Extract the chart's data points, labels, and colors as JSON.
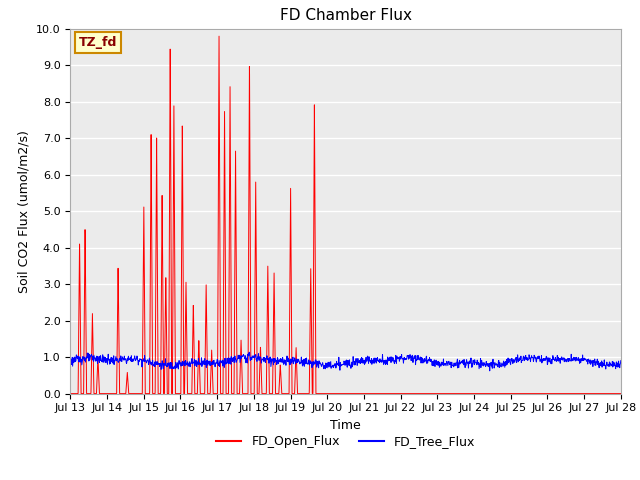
{
  "title": "FD Chamber Flux",
  "xlabel": "Time",
  "ylabel": "Soil CO2 Flux (umol/m2/s)",
  "ylim": [
    0.0,
    10.0
  ],
  "xlim_days": [
    13,
    28
  ],
  "yticks": [
    0.0,
    1.0,
    2.0,
    3.0,
    4.0,
    5.0,
    6.0,
    7.0,
    8.0,
    9.0,
    10.0
  ],
  "xtick_labels": [
    "Jul 13",
    "Jul 14",
    "Jul 15",
    "Jul 16",
    "Jul 17",
    "Jul 18",
    "Jul 19",
    "Jul 20",
    "Jul 21",
    "Jul 22",
    "Jul 23",
    "Jul 24",
    "Jul 25",
    "Jul 26",
    "Jul 27",
    "Jul 28"
  ],
  "annotation_text": "TZ_fd",
  "annotation_bg": "#ffffcc",
  "annotation_border": "#cc8800",
  "annotation_text_color": "#880000",
  "open_flux_color": "red",
  "tree_flux_color": "blue",
  "bg_color": "#ebebeb",
  "legend_labels": [
    "FD_Open_Flux",
    "FD_Tree_Flux"
  ],
  "title_fontsize": 11,
  "axis_label_fontsize": 9,
  "tick_fontsize": 8,
  "spike_times": [
    13.25,
    13.4,
    13.6,
    13.75,
    14.3,
    14.55,
    15.0,
    15.2,
    15.35,
    15.5,
    15.6,
    15.72,
    15.82,
    16.05,
    16.15,
    16.35,
    16.5,
    16.7,
    16.85,
    17.05,
    17.2,
    17.35,
    17.5,
    17.65,
    17.88,
    18.05,
    18.18,
    18.38,
    18.55,
    18.72,
    19.0,
    19.15,
    19.55,
    19.65
  ],
  "spike_heights": [
    4.2,
    4.6,
    2.2,
    1.0,
    3.5,
    0.6,
    5.3,
    7.2,
    7.1,
    5.5,
    3.3,
    9.8,
    8.0,
    7.6,
    3.1,
    2.5,
    1.5,
    3.0,
    1.2,
    10.0,
    7.9,
    8.6,
    6.8,
    1.5,
    9.2,
    5.8,
    1.3,
    3.5,
    3.4,
    0.8,
    5.8,
    1.3,
    3.45,
    8.05
  ]
}
